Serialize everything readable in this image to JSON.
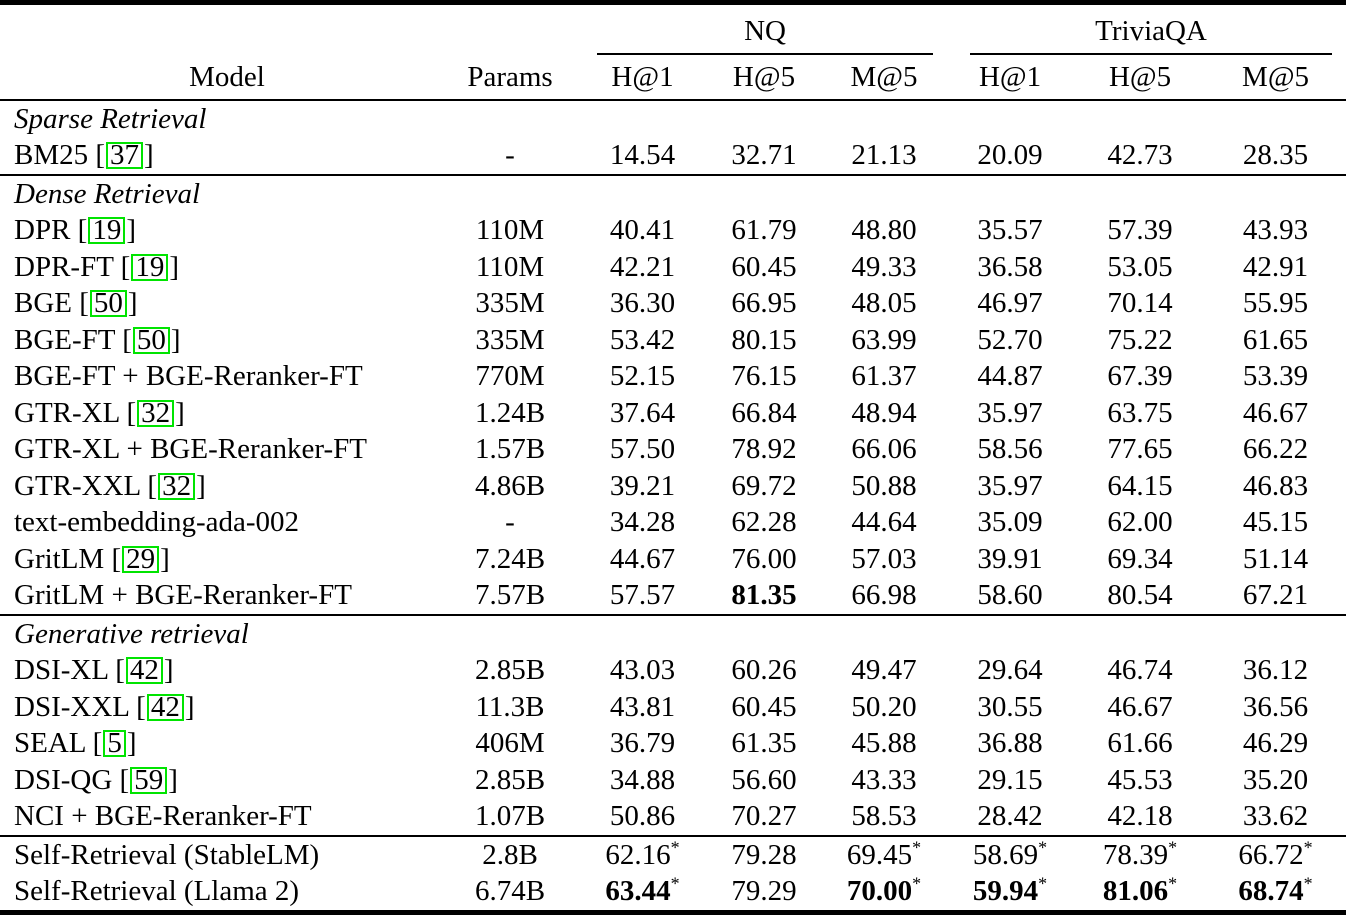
{
  "colors": {
    "background": "#ffffff",
    "text": "#000000",
    "citation_box": "#00e400"
  },
  "table": {
    "groups": [
      {
        "label": "NQ"
      },
      {
        "label": "TriviaQA"
      }
    ],
    "headers": {
      "model": "Model",
      "params": "Params"
    },
    "metric_headers": [
      "H@1",
      "H@5",
      "M@5",
      "H@1",
      "H@5",
      "M@5"
    ],
    "sections": [
      {
        "title": "Sparse Retrieval",
        "rule_after": true,
        "rows": [
          {
            "model": "BM25",
            "cite": "37",
            "params": "-",
            "cells": [
              {
                "v": "14.54"
              },
              {
                "v": "32.71"
              },
              {
                "v": "21.13"
              },
              {
                "v": "20.09"
              },
              {
                "v": "42.73"
              },
              {
                "v": "28.35"
              }
            ]
          }
        ]
      },
      {
        "title": "Dense Retrieval",
        "rule_after": true,
        "rows": [
          {
            "model": "DPR",
            "cite": "19",
            "params": "110M",
            "cells": [
              {
                "v": "40.41"
              },
              {
                "v": "61.79"
              },
              {
                "v": "48.80"
              },
              {
                "v": "35.57"
              },
              {
                "v": "57.39"
              },
              {
                "v": "43.93"
              }
            ]
          },
          {
            "model": "DPR-FT",
            "cite": "19",
            "params": "110M",
            "cells": [
              {
                "v": "42.21"
              },
              {
                "v": "60.45"
              },
              {
                "v": "49.33"
              },
              {
                "v": "36.58"
              },
              {
                "v": "53.05"
              },
              {
                "v": "42.91"
              }
            ]
          },
          {
            "model": "BGE",
            "cite": "50",
            "params": "335M",
            "cells": [
              {
                "v": "36.30"
              },
              {
                "v": "66.95"
              },
              {
                "v": "48.05"
              },
              {
                "v": "46.97"
              },
              {
                "v": "70.14"
              },
              {
                "v": "55.95"
              }
            ]
          },
          {
            "model": "BGE-FT",
            "cite": "50",
            "params": "335M",
            "cells": [
              {
                "v": "53.42"
              },
              {
                "v": "80.15"
              },
              {
                "v": "63.99"
              },
              {
                "v": "52.70"
              },
              {
                "v": "75.22"
              },
              {
                "v": "61.65"
              }
            ]
          },
          {
            "model": "BGE-FT + BGE-Reranker-FT",
            "cite": null,
            "params": "770M",
            "cells": [
              {
                "v": "52.15"
              },
              {
                "v": "76.15"
              },
              {
                "v": "61.37"
              },
              {
                "v": "44.87"
              },
              {
                "v": "67.39"
              },
              {
                "v": "53.39"
              }
            ]
          },
          {
            "model": "GTR-XL",
            "cite": "32",
            "params": "1.24B",
            "cells": [
              {
                "v": "37.64"
              },
              {
                "v": "66.84"
              },
              {
                "v": "48.94"
              },
              {
                "v": "35.97"
              },
              {
                "v": "63.75"
              },
              {
                "v": "46.67"
              }
            ]
          },
          {
            "model": "GTR-XL + BGE-Reranker-FT",
            "cite": null,
            "params": "1.57B",
            "cells": [
              {
                "v": "57.50"
              },
              {
                "v": "78.92"
              },
              {
                "v": "66.06"
              },
              {
                "v": "58.56"
              },
              {
                "v": "77.65"
              },
              {
                "v": "66.22"
              }
            ]
          },
          {
            "model": "GTR-XXL",
            "cite": "32",
            "params": "4.86B",
            "cells": [
              {
                "v": "39.21"
              },
              {
                "v": "69.72"
              },
              {
                "v": "50.88"
              },
              {
                "v": "35.97"
              },
              {
                "v": "64.15"
              },
              {
                "v": "46.83"
              }
            ]
          },
          {
            "model": "text-embedding-ada-002",
            "cite": null,
            "params": "-",
            "cells": [
              {
                "v": "34.28"
              },
              {
                "v": "62.28"
              },
              {
                "v": "44.64"
              },
              {
                "v": "35.09"
              },
              {
                "v": "62.00"
              },
              {
                "v": "45.15"
              }
            ]
          },
          {
            "model": "GritLM",
            "cite": "29",
            "params": "7.24B",
            "cells": [
              {
                "v": "44.67"
              },
              {
                "v": "76.00"
              },
              {
                "v": "57.03"
              },
              {
                "v": "39.91"
              },
              {
                "v": "69.34"
              },
              {
                "v": "51.14"
              }
            ]
          },
          {
            "model": "GritLM + BGE-Reranker-FT",
            "cite": null,
            "params": "7.57B",
            "cells": [
              {
                "v": "57.57"
              },
              {
                "v": "81.35",
                "b": true
              },
              {
                "v": "66.98"
              },
              {
                "v": "58.60"
              },
              {
                "v": "80.54"
              },
              {
                "v": "67.21"
              }
            ]
          }
        ]
      },
      {
        "title": "Generative retrieval",
        "rule_after": true,
        "rows": [
          {
            "model": "DSI-XL",
            "cite": "42",
            "params": "2.85B",
            "cells": [
              {
                "v": "43.03"
              },
              {
                "v": "60.26"
              },
              {
                "v": "49.47"
              },
              {
                "v": "29.64"
              },
              {
                "v": "46.74"
              },
              {
                "v": "36.12"
              }
            ]
          },
          {
            "model": "DSI-XXL",
            "cite": "42",
            "params": "11.3B",
            "cells": [
              {
                "v": "43.81"
              },
              {
                "v": "60.45"
              },
              {
                "v": "50.20"
              },
              {
                "v": "30.55"
              },
              {
                "v": "46.67"
              },
              {
                "v": "36.56"
              }
            ]
          },
          {
            "model": "SEAL",
            "cite": "5",
            "params": "406M",
            "cells": [
              {
                "v": "36.79"
              },
              {
                "v": "61.35"
              },
              {
                "v": "45.88"
              },
              {
                "v": "36.88"
              },
              {
                "v": "61.66"
              },
              {
                "v": "46.29"
              }
            ]
          },
          {
            "model": "DSI-QG",
            "cite": "59",
            "params": "2.85B",
            "cells": [
              {
                "v": "34.88"
              },
              {
                "v": "56.60"
              },
              {
                "v": "43.33"
              },
              {
                "v": "29.15"
              },
              {
                "v": "45.53"
              },
              {
                "v": "35.20"
              }
            ]
          },
          {
            "model": "NCI + BGE-Reranker-FT",
            "cite": null,
            "params": "1.07B",
            "cells": [
              {
                "v": "50.86"
              },
              {
                "v": "70.27"
              },
              {
                "v": "58.53"
              },
              {
                "v": "28.42"
              },
              {
                "v": "42.18"
              },
              {
                "v": "33.62"
              }
            ]
          }
        ]
      },
      {
        "title": null,
        "rule_after": false,
        "rows": [
          {
            "model": "Self-Retrieval (StableLM)",
            "cite": null,
            "params": "2.8B",
            "cells": [
              {
                "v": "62.16",
                "s": true
              },
              {
                "v": "79.28"
              },
              {
                "v": "69.45",
                "s": true
              },
              {
                "v": "58.69",
                "s": true
              },
              {
                "v": "78.39",
                "s": true
              },
              {
                "v": "66.72",
                "s": true
              }
            ]
          },
          {
            "model": "Self-Retrieval (Llama 2)",
            "cite": null,
            "params": "6.74B",
            "cells": [
              {
                "v": "63.44",
                "b": true,
                "s": true
              },
              {
                "v": "79.29"
              },
              {
                "v": "70.00",
                "b": true,
                "s": true
              },
              {
                "v": "59.94",
                "b": true,
                "s": true
              },
              {
                "v": "81.06",
                "b": true,
                "s": true
              },
              {
                "v": "68.74",
                "b": true,
                "s": true
              }
            ]
          }
        ]
      }
    ]
  }
}
